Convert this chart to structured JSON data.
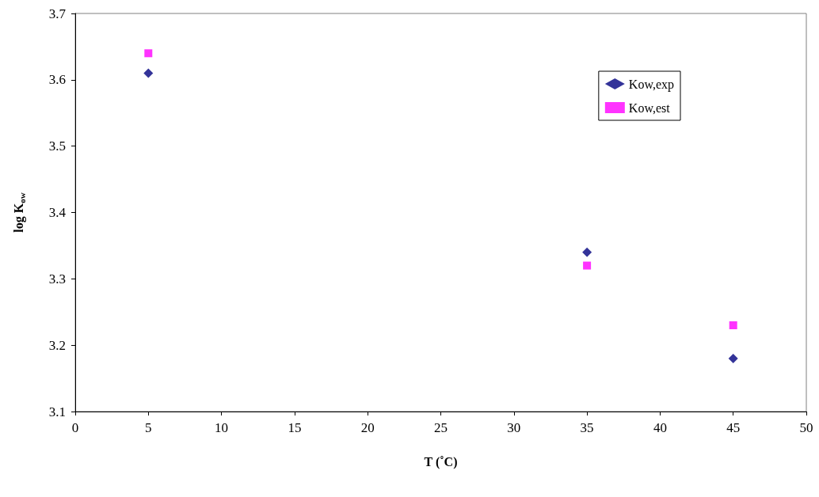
{
  "chart_data": {
    "type": "scatter",
    "xlabel": "T (˚C)",
    "ylabel": "log K$_{ow}$",
    "x": [
      5,
      35,
      45
    ],
    "series": [
      {
        "name": "Kow,exp",
        "color": "#000080",
        "marker": "diamond",
        "values": [
          3.61,
          3.34,
          3.18
        ]
      },
      {
        "name": "Kow,est",
        "color": "#ff00ff",
        "marker": "square",
        "values": [
          3.64,
          3.32,
          3.23
        ]
      }
    ],
    "xlim": [
      0,
      50
    ],
    "xticks": [
      0,
      5,
      10,
      15,
      20,
      25,
      30,
      35,
      40,
      45,
      50
    ],
    "ylim": [
      3.1,
      3.7
    ],
    "yticks": [
      3.1,
      3.2,
      3.3,
      3.4,
      3.5,
      3.6,
      3.7
    ],
    "grid": false,
    "legend": "top right"
  }
}
